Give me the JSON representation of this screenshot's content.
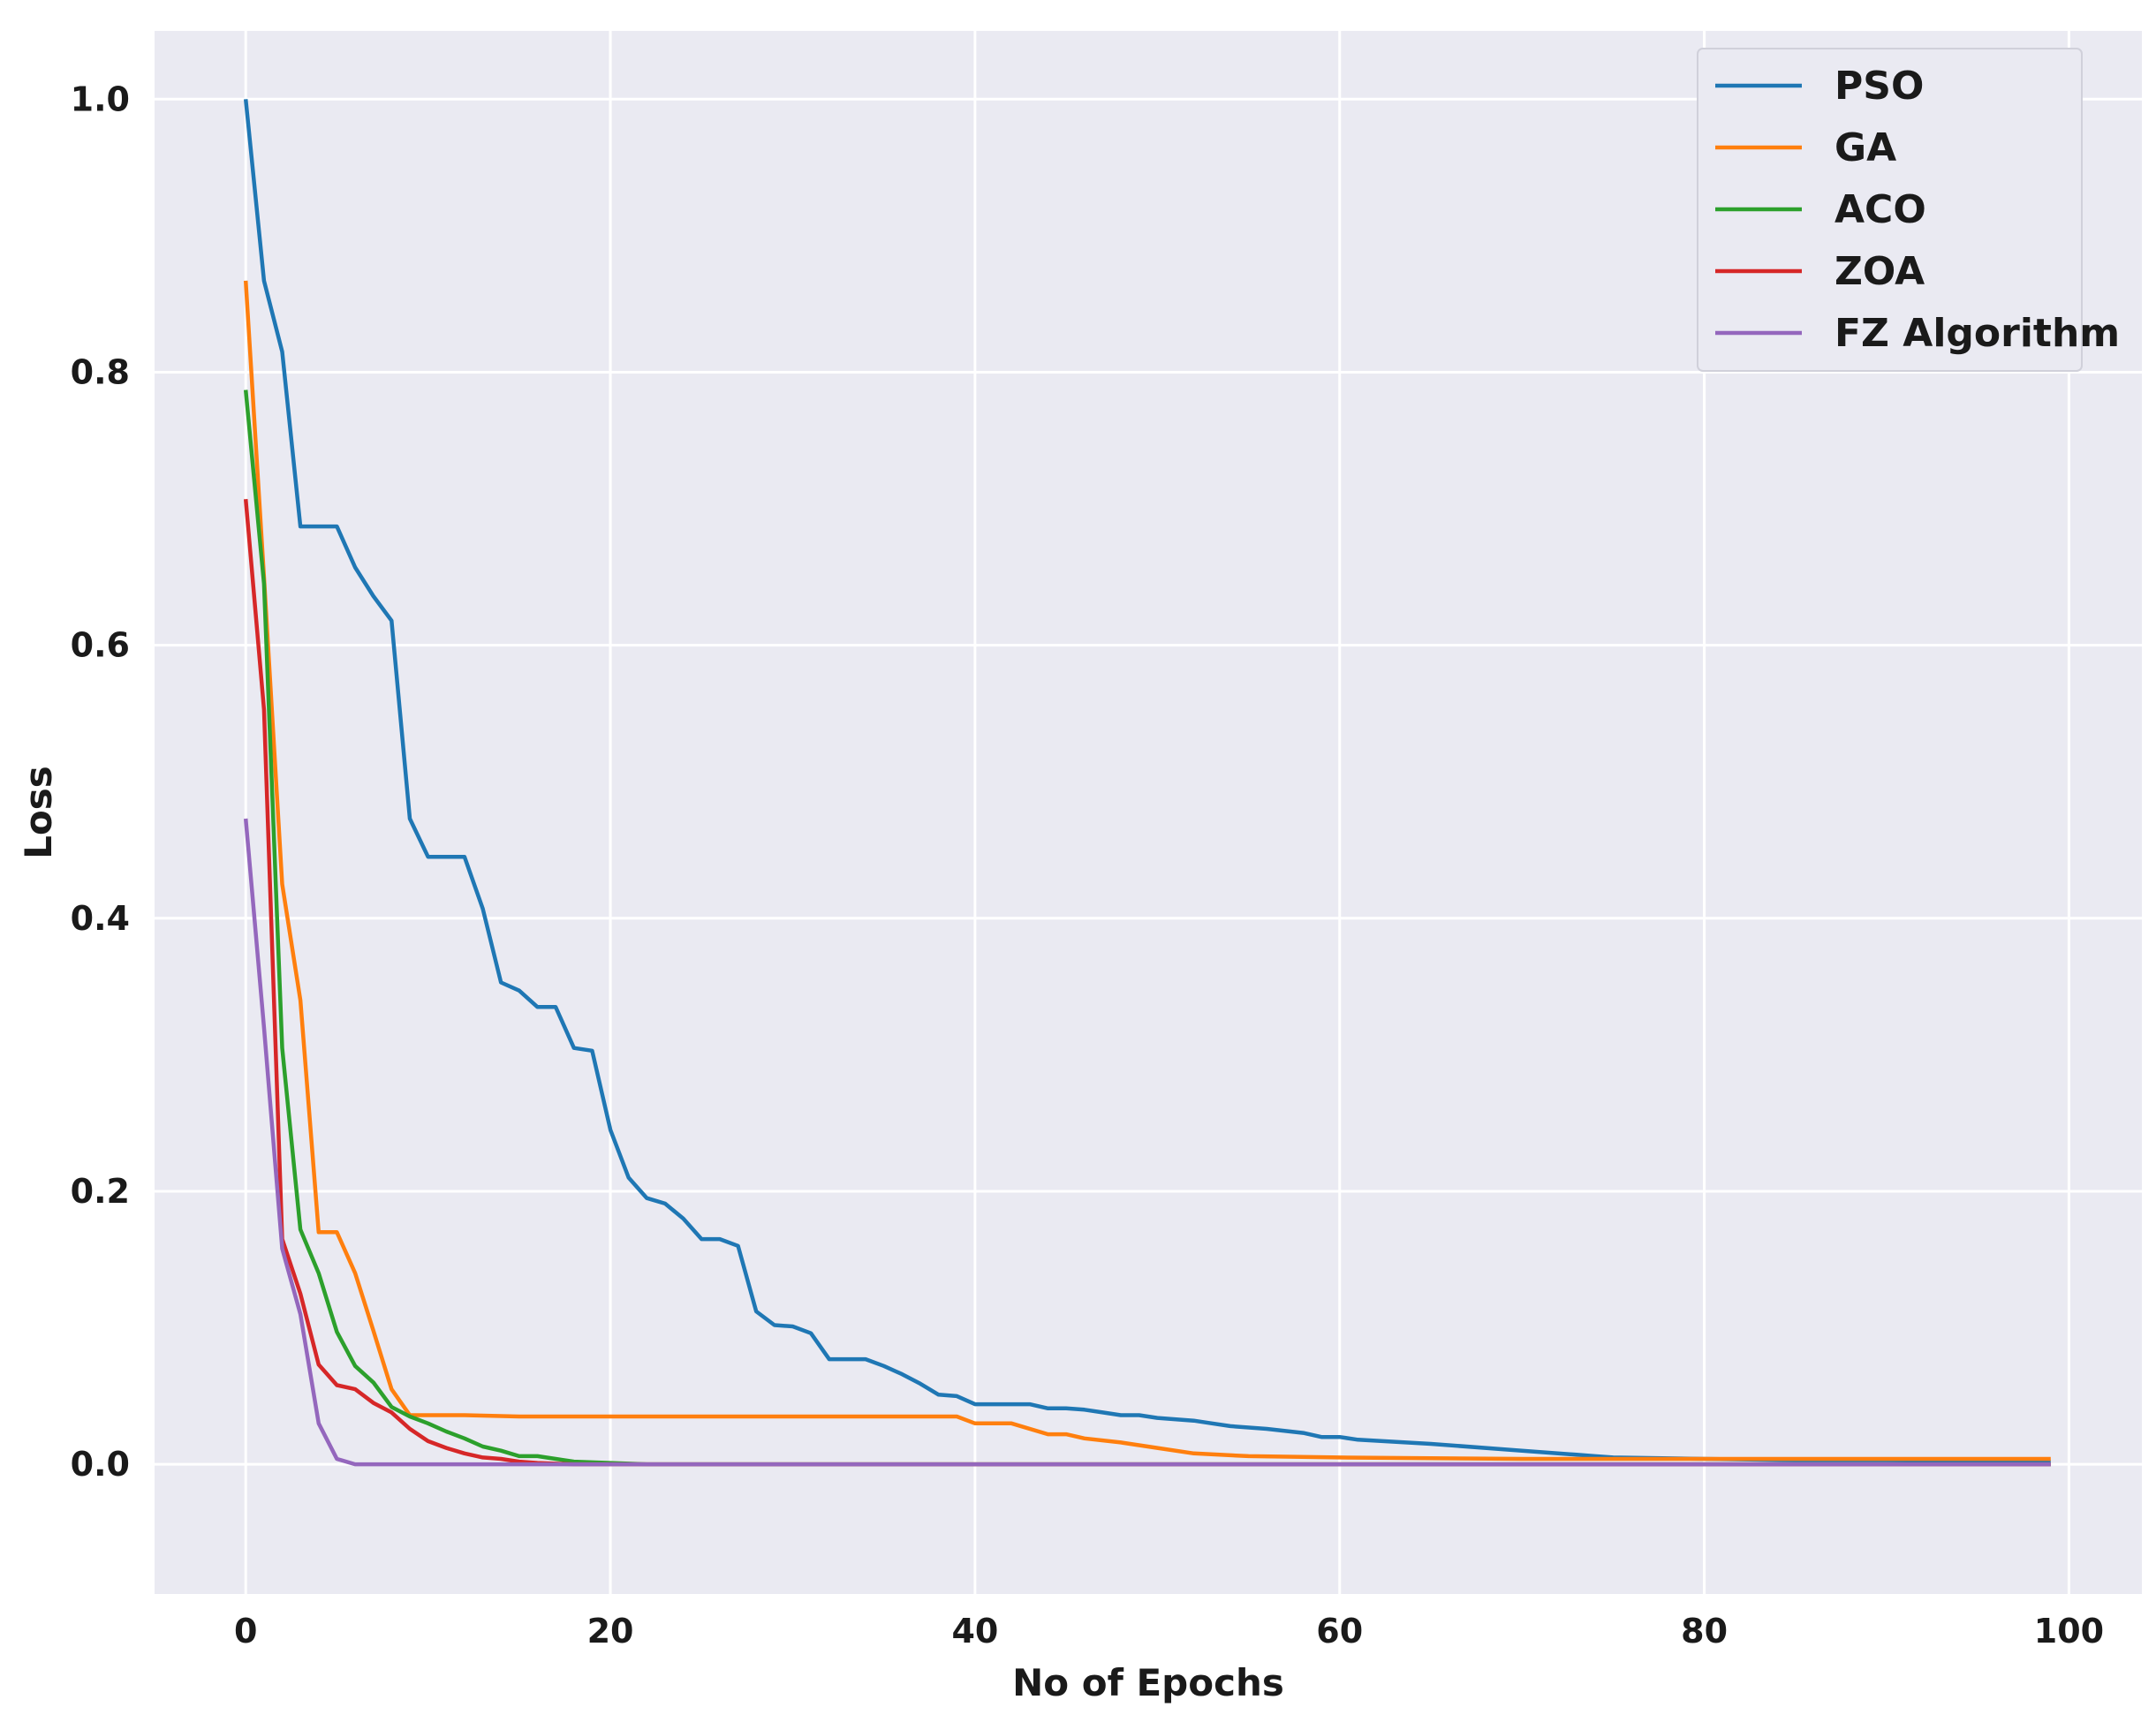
{
  "chart_data": {
    "type": "line",
    "title": "",
    "xlabel": "No of Epochs",
    "ylabel": "Loss",
    "xlim": [
      -5,
      104
    ],
    "ylim": [
      -0.095,
      1.05
    ],
    "xticks": [
      0,
      20,
      40,
      60,
      80,
      100
    ],
    "yticks": [
      0.0,
      0.2,
      0.4,
      0.6,
      0.8,
      1.0
    ],
    "xtick_labels": [
      "0",
      "20",
      "40",
      "60",
      "80",
      "100"
    ],
    "ytick_labels": [
      "0.0",
      "0.2",
      "0.4",
      "0.6",
      "0.8",
      "1.0"
    ],
    "grid": true,
    "legend_position": "top-right",
    "background_color": "#eaeaf2",
    "grid_color": "#ffffff",
    "series": [
      {
        "name": "PSO",
        "color": "#1f77b4",
        "points": [
          [
            0,
            1.0
          ],
          [
            1,
            0.867
          ],
          [
            2,
            0.815
          ],
          [
            3,
            0.687
          ],
          [
            4,
            0.687
          ],
          [
            5,
            0.687
          ],
          [
            6,
            0.657
          ],
          [
            7,
            0.636
          ],
          [
            8,
            0.618
          ],
          [
            9,
            0.473
          ],
          [
            10,
            0.445
          ],
          [
            11,
            0.445
          ],
          [
            12,
            0.445
          ],
          [
            13,
            0.407
          ],
          [
            14,
            0.353
          ],
          [
            15,
            0.347
          ],
          [
            16,
            0.335
          ],
          [
            17,
            0.335
          ],
          [
            18,
            0.305
          ],
          [
            19,
            0.303
          ],
          [
            20,
            0.245
          ],
          [
            21,
            0.21
          ],
          [
            22,
            0.195
          ],
          [
            23,
            0.191
          ],
          [
            24,
            0.18
          ],
          [
            25,
            0.165
          ],
          [
            26,
            0.165
          ],
          [
            27,
            0.16
          ],
          [
            28,
            0.112
          ],
          [
            29,
            0.102
          ],
          [
            30,
            0.101
          ],
          [
            31,
            0.096
          ],
          [
            32,
            0.077
          ],
          [
            33,
            0.077
          ],
          [
            34,
            0.077
          ],
          [
            35,
            0.072
          ],
          [
            36,
            0.066
          ],
          [
            37,
            0.059
          ],
          [
            38,
            0.051
          ],
          [
            39,
            0.05
          ],
          [
            40,
            0.044
          ],
          [
            41,
            0.044
          ],
          [
            42,
            0.044
          ],
          [
            43,
            0.044
          ],
          [
            44,
            0.041
          ],
          [
            45,
            0.041
          ],
          [
            46,
            0.04
          ],
          [
            47,
            0.038
          ],
          [
            48,
            0.036
          ],
          [
            49,
            0.036
          ],
          [
            50,
            0.034
          ],
          [
            52,
            0.032
          ],
          [
            53,
            0.03
          ],
          [
            54,
            0.028
          ],
          [
            56,
            0.026
          ],
          [
            58,
            0.023
          ],
          [
            59,
            0.02
          ],
          [
            60,
            0.02
          ],
          [
            61,
            0.018
          ],
          [
            65,
            0.015
          ],
          [
            70,
            0.01
          ],
          [
            73,
            0.007
          ],
          [
            74,
            0.006
          ],
          [
            75,
            0.005
          ],
          [
            80,
            0.004
          ],
          [
            85,
            0.003
          ],
          [
            90,
            0.003
          ],
          [
            99,
            0.002
          ]
        ]
      },
      {
        "name": "GA",
        "color": "#ff7f0e",
        "points": [
          [
            0,
            0.867
          ],
          [
            1,
            0.65
          ],
          [
            2,
            0.425
          ],
          [
            3,
            0.34
          ],
          [
            4,
            0.17
          ],
          [
            5,
            0.17
          ],
          [
            6,
            0.14
          ],
          [
            7,
            0.098
          ],
          [
            8,
            0.055
          ],
          [
            9,
            0.036
          ],
          [
            10,
            0.036
          ],
          [
            12,
            0.036
          ],
          [
            15,
            0.035
          ],
          [
            20,
            0.035
          ],
          [
            30,
            0.035
          ],
          [
            39,
            0.035
          ],
          [
            40,
            0.03
          ],
          [
            42,
            0.03
          ],
          [
            44,
            0.022
          ],
          [
            45,
            0.022
          ],
          [
            46,
            0.019
          ],
          [
            48,
            0.016
          ],
          [
            50,
            0.012
          ],
          [
            52,
            0.008
          ],
          [
            55,
            0.006
          ],
          [
            60,
            0.005
          ],
          [
            70,
            0.004
          ],
          [
            80,
            0.004
          ],
          [
            99,
            0.004
          ]
        ]
      },
      {
        "name": "ACO",
        "color": "#2ca02c",
        "points": [
          [
            0,
            0.787
          ],
          [
            1,
            0.645
          ],
          [
            2,
            0.305
          ],
          [
            3,
            0.172
          ],
          [
            4,
            0.14
          ],
          [
            5,
            0.097
          ],
          [
            6,
            0.072
          ],
          [
            7,
            0.06
          ],
          [
            8,
            0.042
          ],
          [
            9,
            0.035
          ],
          [
            10,
            0.03
          ],
          [
            11,
            0.024
          ],
          [
            12,
            0.019
          ],
          [
            13,
            0.013
          ],
          [
            14,
            0.01
          ],
          [
            15,
            0.006
          ],
          [
            16,
            0.006
          ],
          [
            17,
            0.004
          ],
          [
            18,
            0.002
          ],
          [
            20,
            0.001
          ],
          [
            22,
            0.0
          ],
          [
            30,
            0.0
          ],
          [
            99,
            0.0
          ]
        ]
      },
      {
        "name": "ZOA",
        "color": "#d62728",
        "points": [
          [
            0,
            0.707
          ],
          [
            1,
            0.553
          ],
          [
            2,
            0.165
          ],
          [
            3,
            0.125
          ],
          [
            4,
            0.073
          ],
          [
            5,
            0.058
          ],
          [
            6,
            0.055
          ],
          [
            7,
            0.045
          ],
          [
            8,
            0.038
          ],
          [
            9,
            0.026
          ],
          [
            10,
            0.017
          ],
          [
            11,
            0.012
          ],
          [
            12,
            0.008
          ],
          [
            13,
            0.005
          ],
          [
            14,
            0.004
          ],
          [
            15,
            0.002
          ],
          [
            16,
            0.001
          ],
          [
            18,
            0.0
          ],
          [
            99,
            0.0
          ]
        ]
      },
      {
        "name": "FZ Algorithm",
        "color": "#9467bd",
        "points": [
          [
            0,
            0.473
          ],
          [
            1,
            0.32
          ],
          [
            2,
            0.158
          ],
          [
            3,
            0.11
          ],
          [
            4,
            0.03
          ],
          [
            5,
            0.004
          ],
          [
            6,
            0.0
          ],
          [
            99,
            0.0
          ]
        ]
      }
    ]
  }
}
